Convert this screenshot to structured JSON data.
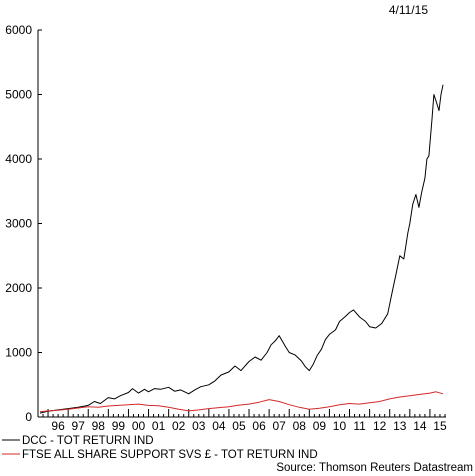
{
  "date": "4/11/15",
  "source": "Source: Thomson Reuters Datastream",
  "colors": {
    "dcc": "#000000",
    "ftse": "#d42a2a"
  },
  "chart_data": {
    "type": "line",
    "ylim": [
      0,
      6000
    ],
    "y_ticks": [
      0,
      1000,
      2000,
      3000,
      4000,
      5000,
      6000
    ],
    "xlim": [
      1995.5,
      2015.8
    ],
    "x_tick_labels": [
      "96",
      "97",
      "98",
      "99",
      "00",
      "01",
      "02",
      "03",
      "04",
      "05",
      "06",
      "07",
      "08",
      "09",
      "10",
      "11",
      "12",
      "13",
      "14",
      "15"
    ],
    "legend_position": "bottom-left",
    "grid": false,
    "series": [
      {
        "name": "DCC - TOT RETURN IND",
        "x": [
          1995.6,
          1996.0,
          1996.5,
          1997.0,
          1997.5,
          1998.0,
          1998.3,
          1998.6,
          1999.0,
          1999.3,
          1999.6,
          2000.0,
          2000.2,
          2000.5,
          2000.8,
          2001.0,
          2001.3,
          2001.6,
          2002.0,
          2002.3,
          2002.6,
          2003.0,
          2003.3,
          2003.6,
          2004.0,
          2004.3,
          2004.6,
          2005.0,
          2005.3,
          2005.6,
          2006.0,
          2006.3,
          2006.6,
          2006.9,
          2007.1,
          2007.3,
          2007.5,
          2007.8,
          2008.0,
          2008.3,
          2008.6,
          2008.8,
          2009.0,
          2009.2,
          2009.4,
          2009.6,
          2009.8,
          2010.0,
          2010.3,
          2010.5,
          2010.8,
          2011.0,
          2011.2,
          2011.5,
          2011.8,
          2012.0,
          2012.3,
          2012.6,
          2012.9,
          2013.1,
          2013.3,
          2013.5,
          2013.7,
          2013.9,
          2014.0,
          2014.15,
          2014.3,
          2014.45,
          2014.6,
          2014.75,
          2014.85,
          2014.95,
          2015.1,
          2015.2,
          2015.3,
          2015.45,
          2015.55,
          2015.65
        ],
        "y": [
          60,
          90,
          110,
          130,
          150,
          180,
          240,
          210,
          300,
          280,
          330,
          380,
          440,
          370,
          430,
          390,
          440,
          430,
          460,
          400,
          420,
          360,
          420,
          470,
          500,
          560,
          650,
          700,
          790,
          720,
          860,
          930,
          880,
          1000,
          1120,
          1180,
          1260,
          1100,
          1000,
          960,
          870,
          780,
          720,
          820,
          960,
          1050,
          1200,
          1280,
          1350,
          1480,
          1560,
          1620,
          1660,
          1550,
          1480,
          1400,
          1380,
          1450,
          1600,
          1900,
          2200,
          2500,
          2450,
          2850,
          3000,
          3300,
          3450,
          3250,
          3500,
          3700,
          4000,
          4050,
          4600,
          5000,
          4900,
          4750,
          5000,
          5150
        ]
      },
      {
        "name": "FTSE ALL SHARE SUPPORT SVS £ - TOT RETURN IND",
        "x": [
          1995.6,
          1996.0,
          1996.5,
          1997.0,
          1997.5,
          1998.0,
          1998.5,
          1999.0,
          1999.5,
          2000.0,
          2000.5,
          2001.0,
          2001.5,
          2002.0,
          2002.5,
          2003.0,
          2003.5,
          2004.0,
          2004.5,
          2005.0,
          2005.5,
          2006.0,
          2006.5,
          2007.0,
          2007.5,
          2008.0,
          2008.5,
          2009.0,
          2009.5,
          2010.0,
          2010.5,
          2011.0,
          2011.5,
          2012.0,
          2012.5,
          2013.0,
          2013.5,
          2014.0,
          2014.5,
          2015.0,
          2015.3,
          2015.65
        ],
        "y": [
          80,
          95,
          105,
          120,
          140,
          160,
          150,
          170,
          180,
          190,
          200,
          180,
          175,
          150,
          120,
          95,
          110,
          130,
          145,
          160,
          185,
          200,
          230,
          270,
          240,
          190,
          150,
          120,
          135,
          160,
          190,
          210,
          200,
          220,
          240,
          280,
          310,
          330,
          350,
          370,
          390,
          360
        ]
      }
    ]
  }
}
